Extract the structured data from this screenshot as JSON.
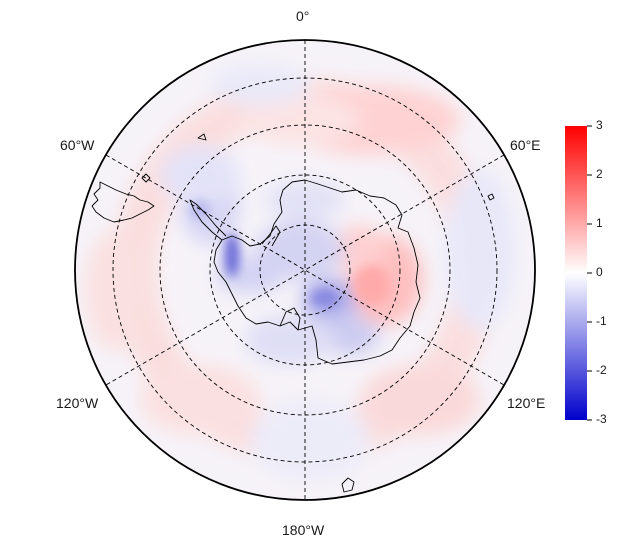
{
  "map": {
    "projection": "south-polar-stereographic",
    "lon_labels": {
      "top": "0°",
      "upper_left": "60°W",
      "upper_right": "60°E",
      "lower_left": "120°W",
      "lower_right": "120°E",
      "bottom": "180°W"
    },
    "graticule_style": "dashed",
    "coastline_color": "#000000"
  },
  "colorbar": {
    "ticks": [
      "3",
      "2",
      "1",
      "0",
      "-1",
      "-2",
      "-3"
    ],
    "range": [
      -3,
      3
    ],
    "colors": {
      "high": "#ff0000",
      "mid": "#ffffff",
      "low": "#0000cc"
    }
  }
}
